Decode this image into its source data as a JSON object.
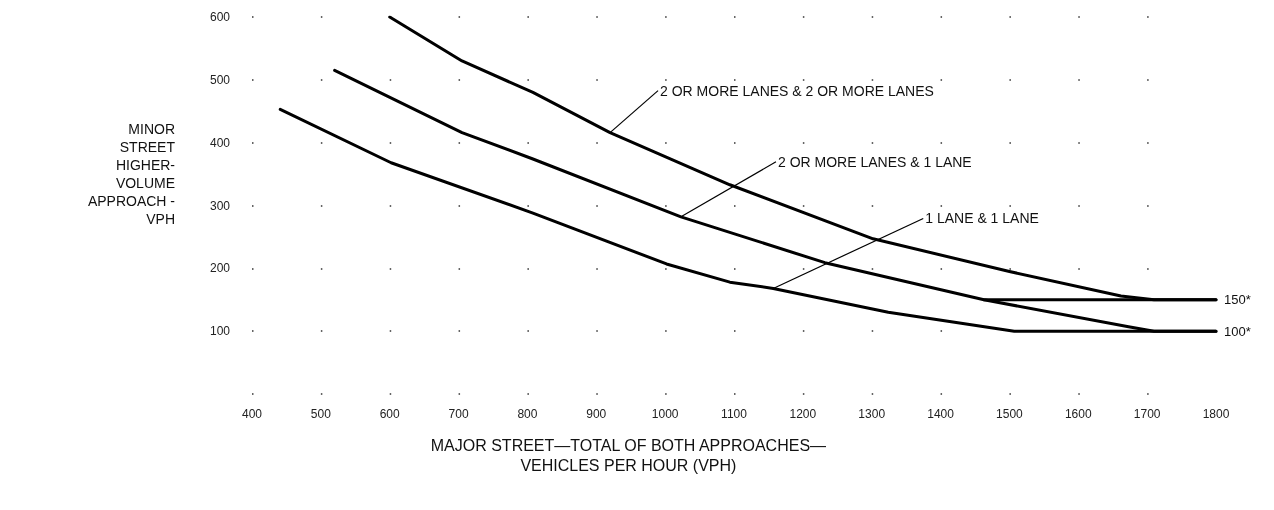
{
  "chart_data": {
    "type": "line",
    "xlabel": "MAJOR STREET—TOTAL OF BOTH APPROACHES—\nVEHICLES PER HOUR (VPH)",
    "ylabel": "MINOR\nSTREET\nHIGHER-\nVOLUME\nAPPROACH -\nVPH",
    "xlim": [
      400,
      1800
    ],
    "xticks": [
      400,
      500,
      600,
      700,
      800,
      900,
      1000,
      1100,
      1200,
      1300,
      1400,
      1500,
      1600,
      1700,
      1800
    ],
    "ylim": [
      0,
      600
    ],
    "yticks": [
      {
        "value": 0,
        "label": null
      },
      100,
      200,
      300,
      400,
      500,
      600
    ],
    "grid": true,
    "marker": "none",
    "line_style": "solid",
    "series": [
      {
        "color": "#000000",
        "x": [
          600,
          705,
          808,
          920,
          1094,
          1302,
          1500,
          1662,
          1710,
          1800
        ],
        "values": [
          600,
          530,
          480,
          416,
          333,
          247,
          195,
          156,
          150,
          150
        ]
      },
      {
        "color": "#000000",
        "x": [
          520,
          705,
          808,
          1023,
          1232,
          1463,
          1673,
          1710,
          1800
        ],
        "values": [
          515,
          416,
          374,
          282,
          209,
          150,
          107,
          100,
          100
        ]
      },
      {
        "color": "#000000",
        "x": [
          1463,
          1800
        ],
        "values": [
          150,
          150
        ]
      },
      {
        "color": "#000000",
        "x": [
          441,
          602,
          808,
          1002,
          1094,
          1157,
          1324,
          1507,
          1800
        ],
        "values": [
          453,
          368,
          288,
          207,
          178,
          168,
          130,
          100,
          100
        ]
      }
    ],
    "annotations": [
      {
        "text": "2 OR MORE LANES & 2 OR MORE LANES",
        "x": 920,
        "y": 416
      },
      {
        "text": "2 OR MORE LANES & 1 LANE",
        "x": 1023,
        "y": 282
      },
      {
        "text": "1 LANE & 1 LANE",
        "x": 1157,
        "y": 168
      },
      {
        "text": "150*",
        "x": 1800,
        "y": 150
      },
      {
        "text": "100*",
        "x": 1800,
        "y": 100
      }
    ]
  }
}
